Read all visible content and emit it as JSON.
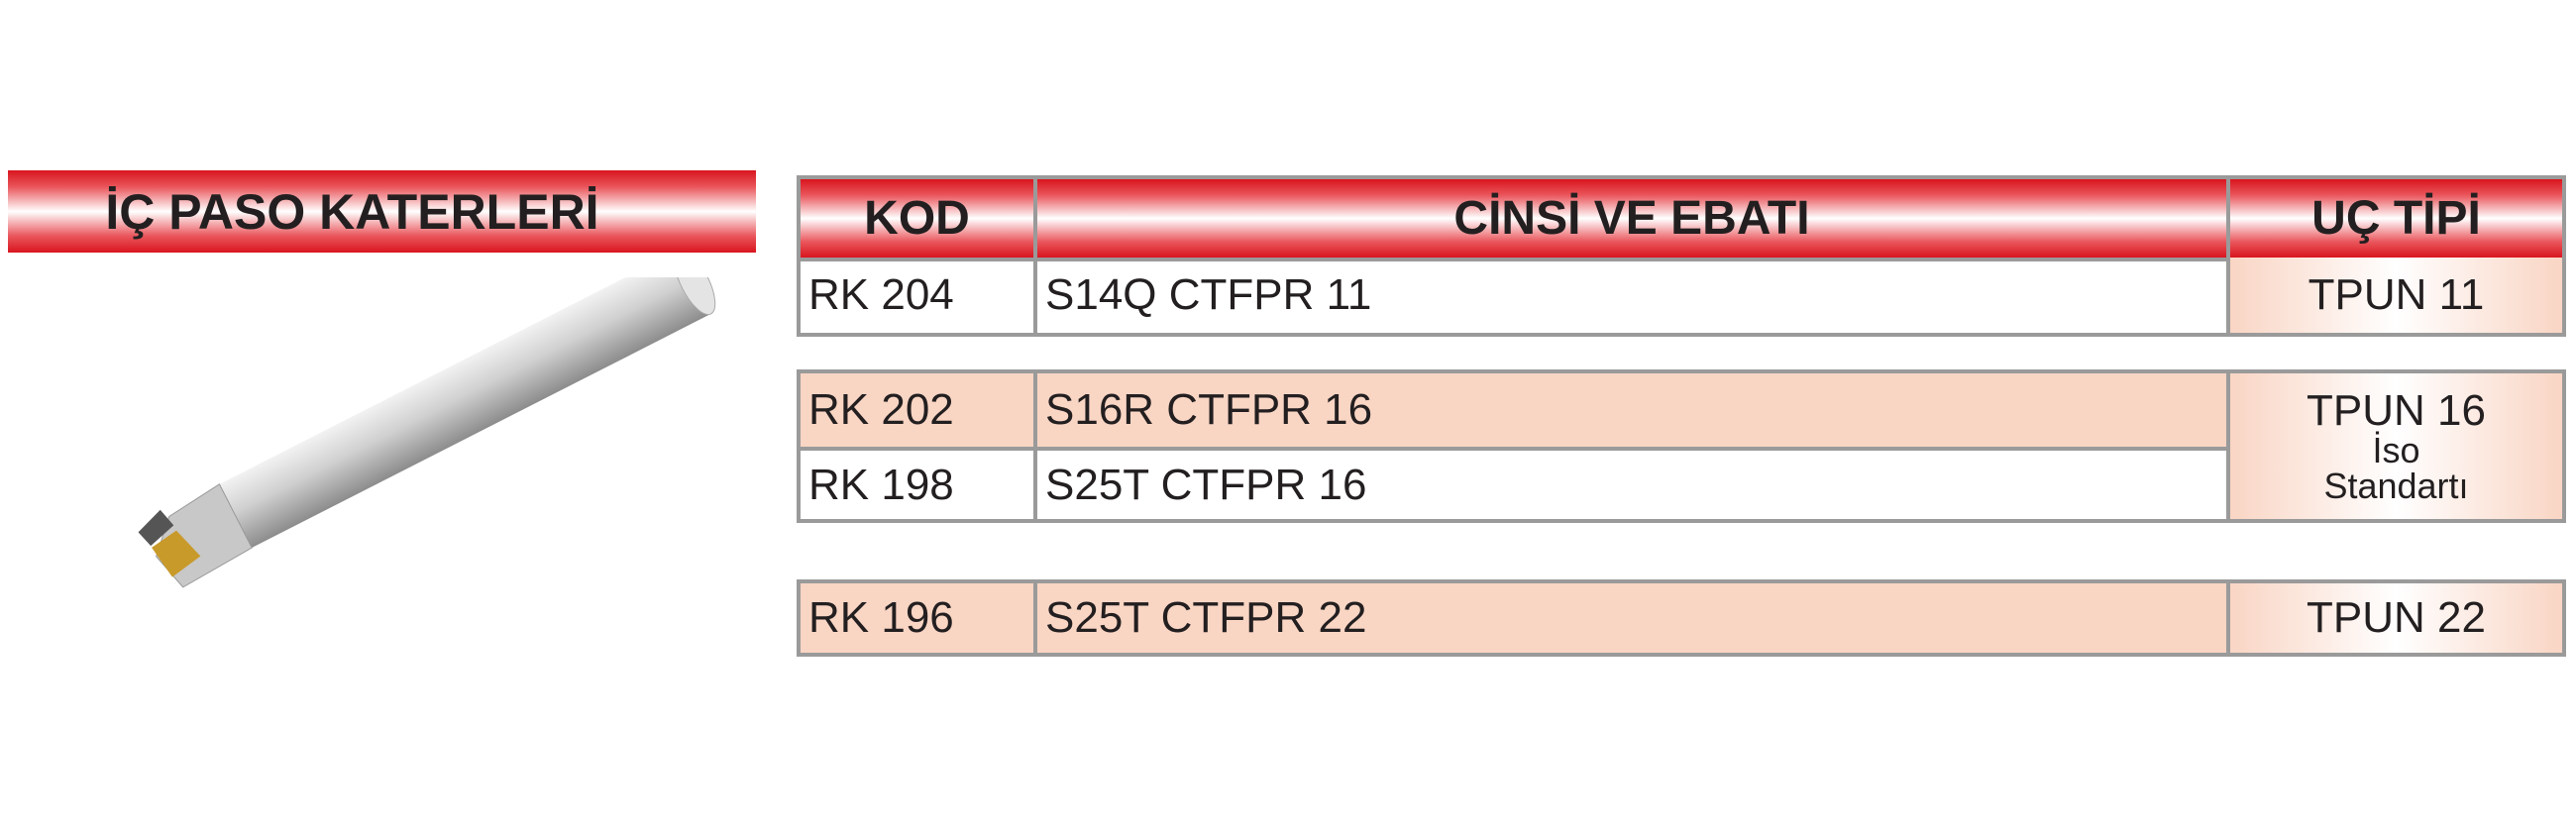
{
  "header": {
    "title": "İÇ PASO KATERLERİ"
  },
  "table": {
    "columns": [
      "KOD",
      "CİNSİ VE EBATI",
      "UÇ TİPİ"
    ],
    "groups": [
      {
        "rows": [
          [
            "RK 204",
            "S14Q CTFPR 11"
          ]
        ],
        "tip": [
          "TPUN 11"
        ]
      },
      {
        "rows": [
          [
            "RK 202",
            "S16R CTFPR 16"
          ],
          [
            "RK 198",
            "S25T CTFPR 16"
          ]
        ],
        "tip": [
          "TPUN 16",
          "İso",
          "Standartı"
        ]
      },
      {
        "rows": [
          [
            "RK 196",
            "S25T CTFPR 22"
          ]
        ],
        "tip": [
          "TPUN 22"
        ]
      }
    ]
  }
}
